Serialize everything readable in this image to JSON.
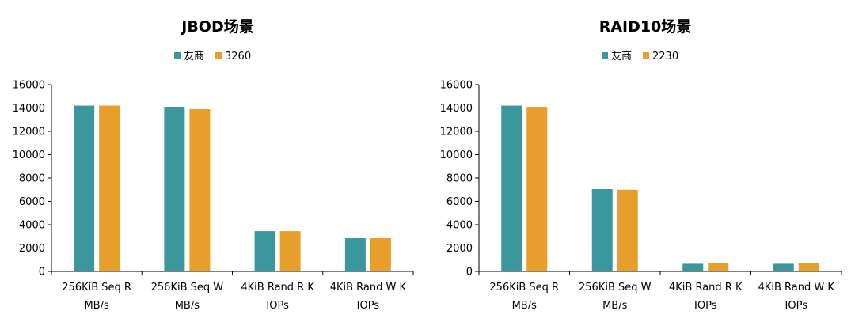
{
  "chart_data": [
    {
      "type": "bar",
      "title": "JBOD场景",
      "categories": [
        [
          "256KiB Seq R",
          "MB/s"
        ],
        [
          "256KiB Seq W",
          "MB/s"
        ],
        [
          "4KiB Rand R K",
          "IOPs"
        ],
        [
          "4KiB Rand W K",
          "IOPs"
        ]
      ],
      "series": [
        {
          "name": "友商",
          "color": "#3a979d",
          "values": [
            14200,
            14100,
            3450,
            2850
          ]
        },
        {
          "name": "3260",
          "color": "#e89e2b",
          "values": [
            14200,
            13900,
            3450,
            2850
          ]
        }
      ],
      "ylim": [
        0,
        16000
      ],
      "yticks": [
        "0",
        "2000",
        "4000",
        "6000",
        "8000",
        "10000",
        "12000",
        "14000",
        "16000"
      ],
      "legend_position": "top-center",
      "grid": false
    },
    {
      "type": "bar",
      "title": "RAID10场景",
      "categories": [
        [
          "256KiB Seq R",
          "MB/s"
        ],
        [
          "256KiB Seq W",
          "MB/s"
        ],
        [
          "4KiB Rand R K",
          "IOPs"
        ],
        [
          "4KiB Rand W K",
          "IOPs"
        ]
      ],
      "series": [
        {
          "name": "友商",
          "color": "#3a979d",
          "values": [
            14200,
            7050,
            650,
            650
          ]
        },
        {
          "name": "2230",
          "color": "#e89e2b",
          "values": [
            14100,
            7000,
            730,
            680
          ]
        }
      ],
      "ylim": [
        0,
        16000
      ],
      "yticks": [
        "0",
        "2000",
        "4000",
        "6000",
        "8000",
        "10000",
        "12000",
        "14000",
        "16000"
      ],
      "legend_position": "top-center",
      "grid": false
    }
  ]
}
